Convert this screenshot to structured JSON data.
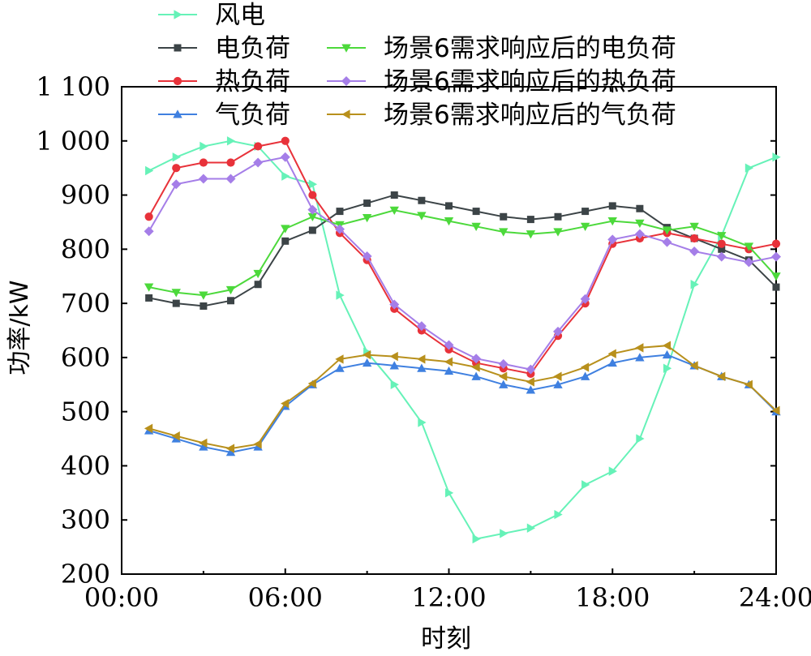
{
  "chart_data": {
    "type": "line",
    "xlabel": "时刻",
    "ylabel": "功率/kW",
    "x_tick_labels": [
      "00:00",
      "06:00",
      "12:00",
      "18:00",
      "24:00"
    ],
    "y_tick_labels": [
      "200",
      "300",
      "400",
      "500",
      "600",
      "700",
      "800",
      "900",
      "1 000",
      "1 100"
    ],
    "xlim": [
      0,
      24
    ],
    "ylim": [
      200,
      1100
    ],
    "x": [
      1,
      2,
      3,
      4,
      5,
      6,
      7,
      8,
      9,
      10,
      11,
      12,
      13,
      14,
      15,
      16,
      17,
      18,
      19,
      20,
      21,
      22,
      23,
      24
    ],
    "series": [
      {
        "name": "风电",
        "color": "#66f2b8",
        "marker": "triangle-right",
        "values": [
          945,
          970,
          990,
          1000,
          990,
          935,
          920,
          715,
          610,
          550,
          480,
          350,
          265,
          275,
          285,
          310,
          365,
          390,
          450,
          580,
          735,
          825,
          950,
          970
        ]
      },
      {
        "name": "电负荷",
        "color": "#3c4447",
        "marker": "square",
        "values": [
          710,
          700,
          695,
          705,
          735,
          815,
          835,
          870,
          885,
          900,
          890,
          880,
          870,
          860,
          855,
          860,
          870,
          880,
          875,
          840,
          820,
          800,
          780,
          730
        ]
      },
      {
        "name": "热负荷",
        "color": "#e8323a",
        "marker": "circle",
        "values": [
          860,
          950,
          960,
          960,
          990,
          1000,
          900,
          830,
          780,
          690,
          650,
          615,
          590,
          580,
          570,
          640,
          700,
          810,
          820,
          830,
          820,
          810,
          800,
          810
        ]
      },
      {
        "name": "气负荷",
        "color": "#3f80e0",
        "marker": "triangle-up",
        "values": [
          465,
          450,
          435,
          425,
          435,
          510,
          550,
          580,
          590,
          585,
          580,
          575,
          565,
          550,
          540,
          550,
          565,
          590,
          600,
          605,
          585,
          565,
          550,
          500
        ]
      },
      {
        "name": "场景6需求响应后的电负荷",
        "color": "#4cd93b",
        "marker": "triangle-down",
        "values": [
          730,
          720,
          715,
          725,
          755,
          838,
          860,
          845,
          858,
          872,
          862,
          852,
          842,
          832,
          828,
          832,
          842,
          852,
          848,
          835,
          842,
          825,
          805,
          750
        ]
      },
      {
        "name": "场景6需求响应后的热负荷",
        "color": "#a57ee8",
        "marker": "diamond",
        "values": [
          833,
          920,
          930,
          930,
          960,
          970,
          873,
          837,
          787,
          698,
          658,
          623,
          598,
          588,
          578,
          648,
          708,
          818,
          828,
          813,
          796,
          786,
          776,
          786
        ]
      },
      {
        "name": "场景6需求响应后的气负荷",
        "color": "#b8901c",
        "marker": "triangle-left",
        "values": [
          469,
          455,
          442,
          432,
          440,
          515,
          552,
          597,
          605,
          602,
          597,
          592,
          582,
          565,
          555,
          565,
          582,
          607,
          618,
          622,
          585,
          565,
          550,
          502
        ]
      }
    ]
  }
}
